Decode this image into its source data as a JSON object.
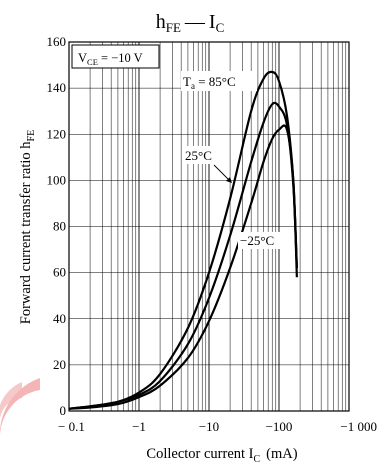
{
  "chart_data": {
    "type": "line",
    "title": "hFE — IC",
    "title_parts": {
      "main": "h",
      "main_sub": "FE",
      "dash": "—",
      "second": "I",
      "second_sub": "C"
    },
    "xlabel": "Collector current  I",
    "xlabel_sub": "C",
    "xlabel_unit": "(mA)",
    "ylabel": "Forward current transfer ratio  h",
    "ylabel_sub": "FE",
    "x_scale": "log",
    "xlim": [
      -0.1,
      -1000
    ],
    "ylim": [
      0,
      160
    ],
    "x_ticks": [
      -0.1,
      -1,
      -10,
      -100,
      -1000
    ],
    "x_tick_labels": [
      "− 0.1",
      "−1",
      "−10",
      "−100",
      "−1 000"
    ],
    "y_ticks": [
      0,
      20,
      40,
      60,
      80,
      100,
      120,
      140,
      160
    ],
    "y_tick_labels": [
      "0",
      "20",
      "40",
      "60",
      "80",
      "100",
      "120",
      "140",
      "160"
    ],
    "grid": true,
    "condition_box": {
      "text": "V",
      "sub": "CE",
      "value": " = −10 V"
    },
    "series": [
      {
        "name": "Ta = 85°C",
        "label_main": "T",
        "label_sub": "a",
        "label_value": " = 85°C",
        "x": [
          -0.1,
          -0.2,
          -0.5,
          -1,
          -2,
          -5,
          -10,
          -20,
          -40,
          -60,
          -80,
          -100,
          -130,
          -160,
          -180
        ],
        "y": [
          1,
          2,
          4,
          8,
          16,
          36,
          60,
          92,
          130,
          144,
          147,
          143,
          128,
          100,
          62
        ]
      },
      {
        "name": "25°C",
        "label_main": "25°C",
        "x": [
          -0.1,
          -0.2,
          -0.5,
          -1,
          -2,
          -5,
          -10,
          -20,
          -40,
          -60,
          -80,
          -100,
          -130,
          -160,
          -180
        ],
        "y": [
          1,
          2,
          4,
          7,
          13,
          29,
          49,
          76,
          108,
          125,
          133,
          132,
          124,
          98,
          62
        ]
      },
      {
        "name": "−25°C",
        "label_main": "−25°C",
        "x": [
          -0.1,
          -0.2,
          -0.5,
          -1,
          -2,
          -5,
          -10,
          -20,
          -40,
          -60,
          -80,
          -100,
          -130,
          -160,
          -180
        ],
        "y": [
          1,
          1.5,
          3,
          6,
          11,
          23,
          39,
          62,
          90,
          108,
          118,
          122,
          122,
          100,
          58
        ]
      }
    ]
  }
}
